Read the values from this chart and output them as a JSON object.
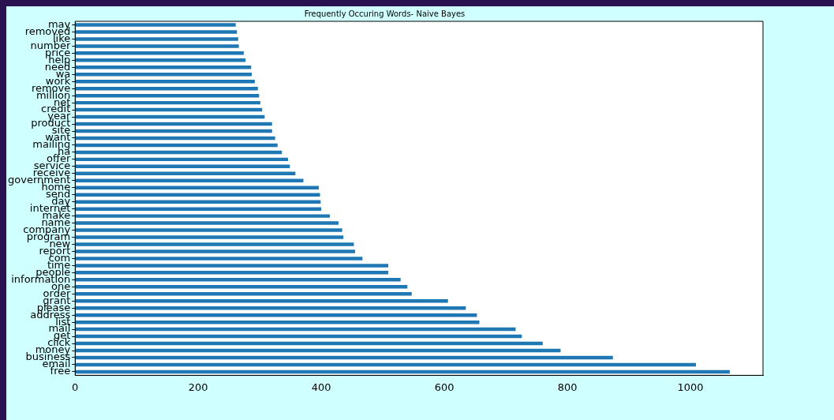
{
  "chart_data": {
    "type": "bar",
    "orientation": "horizontal",
    "title": "Frequently Occuring Words- Naive Bayes",
    "categories": [
      "may",
      "removed",
      "like",
      "number",
      "price",
      "help",
      "need",
      "wa",
      "work",
      "remove",
      "million",
      "net",
      "credit",
      "year",
      "product",
      "site",
      "want",
      "mailing",
      "ha",
      "offer",
      "service",
      "receive",
      "government",
      "home",
      "send",
      "day",
      "internet",
      "make",
      "name",
      "company",
      "program",
      "new",
      "report",
      "com",
      "time",
      "people",
      "information",
      "one",
      "order",
      "grant",
      "please",
      "address",
      "list",
      "mail",
      "get",
      "click",
      "money",
      "business",
      "email",
      "free"
    ],
    "values": [
      261,
      263,
      265,
      266,
      274,
      277,
      286,
      287,
      292,
      297,
      299,
      301,
      304,
      308,
      320,
      320,
      325,
      329,
      336,
      346,
      349,
      358,
      371,
      396,
      398,
      399,
      400,
      414,
      428,
      434,
      436,
      453,
      455,
      467,
      509,
      509,
      529,
      540,
      547,
      606,
      635,
      653,
      657,
      716,
      726,
      760,
      789,
      874,
      1009,
      1064
    ],
    "color": "#1f77b4",
    "xlim": [
      0,
      1118
    ],
    "xticks": [
      0,
      200,
      400,
      600,
      800,
      1000
    ],
    "grid": false,
    "legend": false
  }
}
